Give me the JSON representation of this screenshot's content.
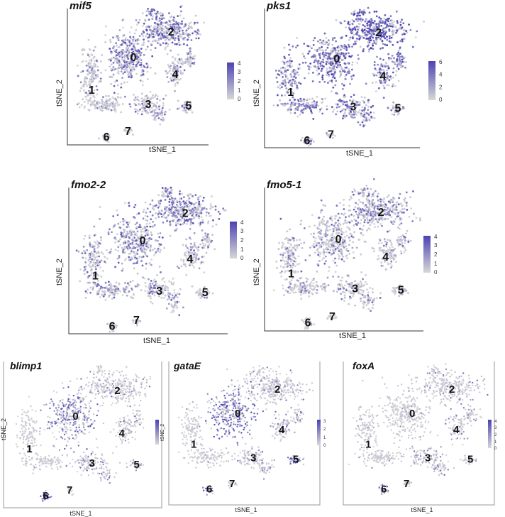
{
  "axes": {
    "xlabel": "tSNE_1",
    "ylabel": "tSNE_2"
  },
  "colors": {
    "low": "#d7d7d7",
    "high": "#4a43b3",
    "cluster_label": "#111111",
    "axis": "#333333"
  },
  "cluster_labels": [
    "0",
    "1",
    "2",
    "3",
    "4",
    "5",
    "6",
    "7"
  ],
  "chart_data": [
    {
      "type": "scatter",
      "title": "mif5",
      "xlabel": "tSNE_1",
      "ylabel": "tSNE_2",
      "legend_ticks": [
        "4",
        "3",
        "2",
        "1",
        "0"
      ],
      "legend_max": 4,
      "cluster_expression": {
        "0": 0.55,
        "1": 0.25,
        "2": 0.6,
        "3": 0.3,
        "4": 0.4,
        "5": 0.5,
        "6": 0.1,
        "7": 0.05
      }
    },
    {
      "type": "scatter",
      "title": "pks1",
      "xlabel": "tSNE_1",
      "ylabel": "tSNE_2",
      "legend_ticks": [
        "6",
        "4",
        "2",
        "0"
      ],
      "legend_max": 6,
      "cluster_expression": {
        "0": 0.7,
        "1": 0.6,
        "2": 0.8,
        "3": 0.6,
        "4": 0.65,
        "5": 0.4,
        "6": 0.5,
        "7": 0.1
      }
    },
    {
      "type": "scatter",
      "title": "fmo2-2",
      "xlabel": "tSNE_1",
      "ylabel": "tSNE_2",
      "legend_ticks": [
        "4",
        "3",
        "2",
        "1",
        "0"
      ],
      "legend_max": 4,
      "cluster_expression": {
        "0": 0.45,
        "1": 0.4,
        "2": 0.6,
        "3": 0.4,
        "4": 0.35,
        "5": 0.2,
        "6": 0.1,
        "7": 0.05
      }
    },
    {
      "type": "scatter",
      "title": "fmo5-1",
      "xlabel": "tSNE_1",
      "ylabel": "tSNE_2",
      "legend_ticks": [
        "4",
        "3",
        "2",
        "1",
        "0"
      ],
      "legend_max": 4,
      "cluster_expression": {
        "0": 0.35,
        "1": 0.3,
        "2": 0.45,
        "3": 0.3,
        "4": 0.3,
        "5": 0.2,
        "6": 0.05,
        "7": 0.05
      }
    },
    {
      "type": "scatter",
      "title": "blimp1",
      "xlabel": "tSNE_1",
      "ylabel": "tSNE_2",
      "legend_ticks": [],
      "legend_max": 4,
      "cluster_expression": {
        "0": 0.55,
        "1": 0.05,
        "2": 0.2,
        "3": 0.3,
        "4": 0.2,
        "5": 0.2,
        "6": 0.85,
        "7": 0.05
      }
    },
    {
      "type": "scatter",
      "title": "gataE",
      "xlabel": "tSNE_1",
      "ylabel": "tSNE_2",
      "legend_ticks": [
        "3",
        "2",
        "1",
        "0"
      ],
      "legend_max": 3,
      "cluster_expression": {
        "0": 0.7,
        "1": 0.05,
        "2": 0.2,
        "3": 0.3,
        "4": 0.3,
        "5": 0.65,
        "6": 0.6,
        "7": 0.05
      }
    },
    {
      "type": "scatter",
      "title": "foxA",
      "xlabel": "tSNE_1",
      "ylabel": "tSNE_2",
      "legend_ticks": [
        "4",
        "3",
        "2",
        "1",
        "0"
      ],
      "legend_max": 4,
      "cluster_expression": {
        "0": 0.1,
        "1": 0.05,
        "2": 0.2,
        "3": 0.3,
        "4": 0.25,
        "5": 0.15,
        "6": 0.6,
        "7": 0.05
      }
    }
  ]
}
